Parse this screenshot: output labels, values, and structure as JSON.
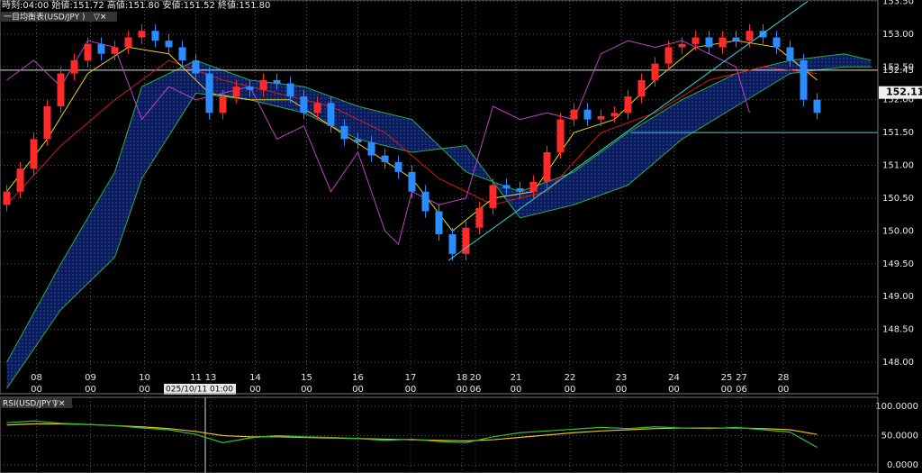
{
  "header": {
    "info": "時刻:04:00  始値:151.72  高値:151.80  安値:151.52  終値:151.80"
  },
  "chart_data": [
    {
      "type": "candlestick",
      "title": "一目均衡表(USD/JPY )",
      "xlim": [
        -0.5,
        64.5
      ],
      "ylim": [
        147.52,
        153.52
      ],
      "yticks": [
        {
          "value": 148,
          "label": "148.00"
        },
        {
          "value": 148.5,
          "label": "148.50"
        },
        {
          "value": 149,
          "label": "149.00"
        },
        {
          "value": 149.5,
          "label": "149.50"
        },
        {
          "value": 150,
          "label": "150.00"
        },
        {
          "value": 150.5,
          "label": "150.50"
        },
        {
          "value": 151,
          "label": "151.00"
        },
        {
          "value": 151.5,
          "label": "151.50"
        },
        {
          "value": 152,
          "label": "152.00"
        },
        {
          "value": 152.5,
          "label": "152.50"
        },
        {
          "value": 153,
          "label": "153.00"
        },
        {
          "value": 153.5,
          "label": "153.50"
        }
      ],
      "xticks": [
        {
          "value": 2.2,
          "label": "08"
        },
        {
          "value": 6.2,
          "label": "09"
        },
        {
          "value": 10.2,
          "label": "10"
        },
        {
          "value": 14,
          "label": "11"
        },
        {
          "value": 15.1,
          "label": "13"
        },
        {
          "value": 18.4,
          "label": "14"
        },
        {
          "value": 22.2,
          "label": "15"
        },
        {
          "value": 26,
          "label": "16"
        },
        {
          "value": 29.9,
          "label": "17"
        },
        {
          "value": 33.7,
          "label": "18"
        },
        {
          "value": 34.7,
          "label": "20"
        },
        {
          "value": 37.7,
          "label": "21"
        },
        {
          "value": 41.7,
          "label": "22"
        },
        {
          "value": 45.5,
          "label": "23"
        },
        {
          "value": 49.4,
          "label": "24"
        },
        {
          "value": 53.3,
          "label": "25"
        },
        {
          "value": 54.4,
          "label": "27"
        },
        {
          "value": 57.5,
          "label": "28"
        }
      ],
      "xtick_sublabels": [
        "00",
        "00",
        "00",
        null,
        null,
        "00",
        "00",
        "00",
        "00",
        "00",
        "06",
        "00",
        "00",
        "00",
        "00",
        "00",
        "06",
        "00"
      ],
      "grid": true,
      "up_color": "#ff2a2a",
      "down_color": "#2a8cff",
      "open": [
        150.4,
        150.6,
        150.95,
        151.4,
        151.9,
        152.4,
        152.6,
        152.85,
        152.7,
        152.8,
        152.95,
        153.05,
        152.9,
        152.8,
        152.6,
        152.4,
        151.8,
        152.05,
        152.2,
        152.15,
        152.3,
        152.25,
        152.05,
        151.8,
        151.95,
        151.6,
        151.4,
        151.35,
        151.15,
        151.05,
        150.9,
        150.6,
        150.3,
        149.95,
        149.65,
        150.05,
        150.35,
        150.7,
        150.65,
        150.6,
        150.75,
        151.2,
        151.7,
        151.85,
        151.7,
        151.75,
        151.8,
        152.05,
        152.3,
        152.55,
        152.8,
        152.85,
        152.95,
        152.8,
        152.95,
        152.9,
        153.05,
        152.95,
        152.8,
        152.6,
        152.0
      ],
      "high": [
        150.7,
        151.05,
        151.5,
        152.0,
        152.5,
        152.7,
        152.95,
        152.95,
        152.9,
        153.05,
        153.15,
        153.15,
        153.0,
        152.9,
        152.7,
        152.5,
        152.15,
        152.3,
        152.3,
        152.4,
        152.4,
        152.35,
        152.15,
        152.05,
        152.05,
        151.7,
        151.5,
        151.45,
        151.25,
        151.15,
        151.0,
        150.7,
        150.4,
        150.05,
        150.15,
        150.45,
        150.8,
        150.8,
        150.75,
        150.85,
        151.3,
        151.8,
        151.95,
        151.95,
        151.85,
        151.9,
        152.15,
        152.4,
        152.65,
        152.9,
        152.95,
        153.05,
        153.05,
        153.05,
        153.05,
        153.15,
        153.15,
        153.05,
        152.9,
        152.7,
        152.1
      ],
      "low": [
        150.3,
        150.5,
        150.85,
        151.3,
        151.8,
        152.3,
        152.5,
        152.6,
        152.6,
        152.7,
        152.85,
        152.8,
        152.7,
        152.5,
        152.3,
        151.7,
        151.7,
        151.95,
        152.05,
        152.05,
        152.15,
        151.95,
        151.7,
        151.7,
        151.5,
        151.3,
        151.25,
        151.05,
        150.95,
        150.8,
        150.5,
        150.2,
        149.85,
        149.55,
        149.55,
        149.95,
        150.25,
        150.55,
        150.5,
        150.5,
        150.65,
        151.1,
        151.6,
        151.6,
        151.6,
        151.65,
        151.7,
        151.95,
        152.2,
        152.45,
        152.7,
        152.75,
        152.7,
        152.7,
        152.8,
        152.8,
        152.85,
        152.7,
        152.5,
        151.9,
        151.7
      ],
      "close": [
        150.6,
        150.95,
        151.4,
        151.9,
        152.4,
        152.6,
        152.85,
        152.7,
        152.8,
        152.95,
        153.05,
        152.9,
        152.8,
        152.6,
        152.4,
        151.8,
        152.05,
        152.2,
        152.15,
        152.3,
        152.25,
        152.05,
        151.8,
        151.95,
        151.6,
        151.4,
        151.35,
        151.15,
        151.05,
        150.9,
        150.6,
        150.3,
        149.95,
        149.65,
        150.05,
        150.35,
        150.7,
        150.65,
        150.6,
        150.75,
        151.2,
        151.7,
        151.85,
        151.7,
        151.75,
        151.8,
        152.05,
        152.3,
        152.55,
        152.8,
        152.85,
        152.95,
        152.8,
        152.95,
        152.9,
        153.05,
        152.95,
        152.8,
        152.6,
        152.0,
        151.8
      ],
      "cloud": {
        "color": "#2fa84f",
        "fill": "#0b1c5c",
        "x": [
          0,
          4,
          8,
          10,
          14,
          18,
          22,
          26,
          30,
          34,
          38,
          42,
          46,
          50,
          54,
          58,
          62,
          64
        ],
        "span_a": [
          148.0,
          149.5,
          150.9,
          152.2,
          152.6,
          152.3,
          152.2,
          151.9,
          151.7,
          150.9,
          150.6,
          150.9,
          151.5,
          152.0,
          152.4,
          152.6,
          152.7,
          152.6
        ],
        "span_b": [
          147.6,
          148.8,
          149.6,
          150.8,
          152.1,
          152.0,
          151.8,
          151.4,
          151.2,
          151.3,
          150.2,
          150.4,
          150.7,
          151.4,
          151.9,
          152.4,
          152.5,
          152.5
        ]
      },
      "lines": [
        {
          "color": "#d81818",
          "x": [
            0,
            4,
            8,
            12,
            16,
            20,
            24,
            28,
            32,
            36,
            40,
            44,
            48,
            52,
            56,
            60
          ],
          "values": [
            150.4,
            151.3,
            152.0,
            152.6,
            152.3,
            152.1,
            151.9,
            151.5,
            150.8,
            150.4,
            150.6,
            151.5,
            151.8,
            152.3,
            152.5,
            152.4
          ]
        },
        {
          "color": "#e8d020",
          "x": [
            0,
            3,
            6,
            9,
            12,
            15,
            18,
            21,
            24,
            27,
            30,
            33,
            36,
            39,
            42,
            45,
            48,
            51,
            54,
            57,
            60
          ],
          "values": [
            150.6,
            151.4,
            152.4,
            152.8,
            152.7,
            152.1,
            152.0,
            152.0,
            151.6,
            151.2,
            150.8,
            150.0,
            150.5,
            150.6,
            151.5,
            151.7,
            152.3,
            152.8,
            152.9,
            152.8,
            152.3
          ]
        },
        {
          "color": "#c040c8",
          "x": [
            0,
            2,
            4,
            6,
            8,
            10,
            12,
            14,
            16,
            18,
            20,
            22,
            24,
            26,
            28,
            29,
            30,
            32,
            34,
            36,
            38,
            40,
            42,
            44,
            46,
            48,
            50,
            52,
            54,
            55
          ],
          "values": [
            152.3,
            152.6,
            152.2,
            152.9,
            152.8,
            151.7,
            152.2,
            152.0,
            152.1,
            152.2,
            151.4,
            151.6,
            150.6,
            151.2,
            150.0,
            149.8,
            150.6,
            150.4,
            150.5,
            151.9,
            151.7,
            151.8,
            151.7,
            152.7,
            152.9,
            152.8,
            152.9,
            152.7,
            152.5,
            151.8
          ]
        }
      ],
      "hlines": [
        {
          "value": 152.45,
          "label": "152.45",
          "color": "#e0e0e0",
          "x_start": -0.5
        },
        {
          "value": 151.5,
          "color": "#30d8d8",
          "x_start": 46.2
        }
      ],
      "trendline": {
        "color": "#30d8d8",
        "x": [
          32.7,
          59.3
        ],
        "values": [
          149.55,
          153.5
        ]
      },
      "last_price": {
        "value": 152.11,
        "label": "152.11"
      },
      "crosshair": {
        "x": 14.7,
        "label": "025/10/11 01:00"
      }
    },
    {
      "type": "line",
      "title": "RSI(USD/JPY )",
      "xlim": [
        -0.5,
        64.5
      ],
      "ylim": [
        -13.6,
        115.2
      ],
      "yticks": [
        {
          "value": 0,
          "label": "0.0000"
        },
        {
          "value": 50,
          "label": "50.0000"
        },
        {
          "value": 100,
          "label": "100.0000"
        }
      ],
      "grid": true,
      "x": [
        0,
        2,
        4,
        6,
        8,
        10,
        12,
        14,
        16,
        18,
        20,
        22,
        24,
        26,
        28,
        30,
        32,
        34,
        36,
        38,
        40,
        42,
        44,
        46,
        48,
        50,
        52,
        54,
        56,
        58,
        60
      ],
      "series": [
        {
          "color": "#e8c020",
          "values": [
            68,
            70,
            70,
            69,
            67,
            65,
            62,
            57,
            50,
            48,
            48,
            47,
            46,
            45,
            44,
            43,
            42,
            41,
            43,
            47,
            51,
            55,
            58,
            60,
            62,
            63,
            63,
            63,
            62,
            60,
            52
          ]
        },
        {
          "color": "#30c030",
          "values": [
            72,
            75,
            71,
            69,
            67,
            63,
            60,
            52,
            38,
            46,
            50,
            48,
            47,
            45,
            42,
            44,
            40,
            38,
            48,
            55,
            58,
            61,
            64,
            62,
            65,
            63,
            62,
            64,
            60,
            56,
            30
          ]
        }
      ]
    }
  ]
}
